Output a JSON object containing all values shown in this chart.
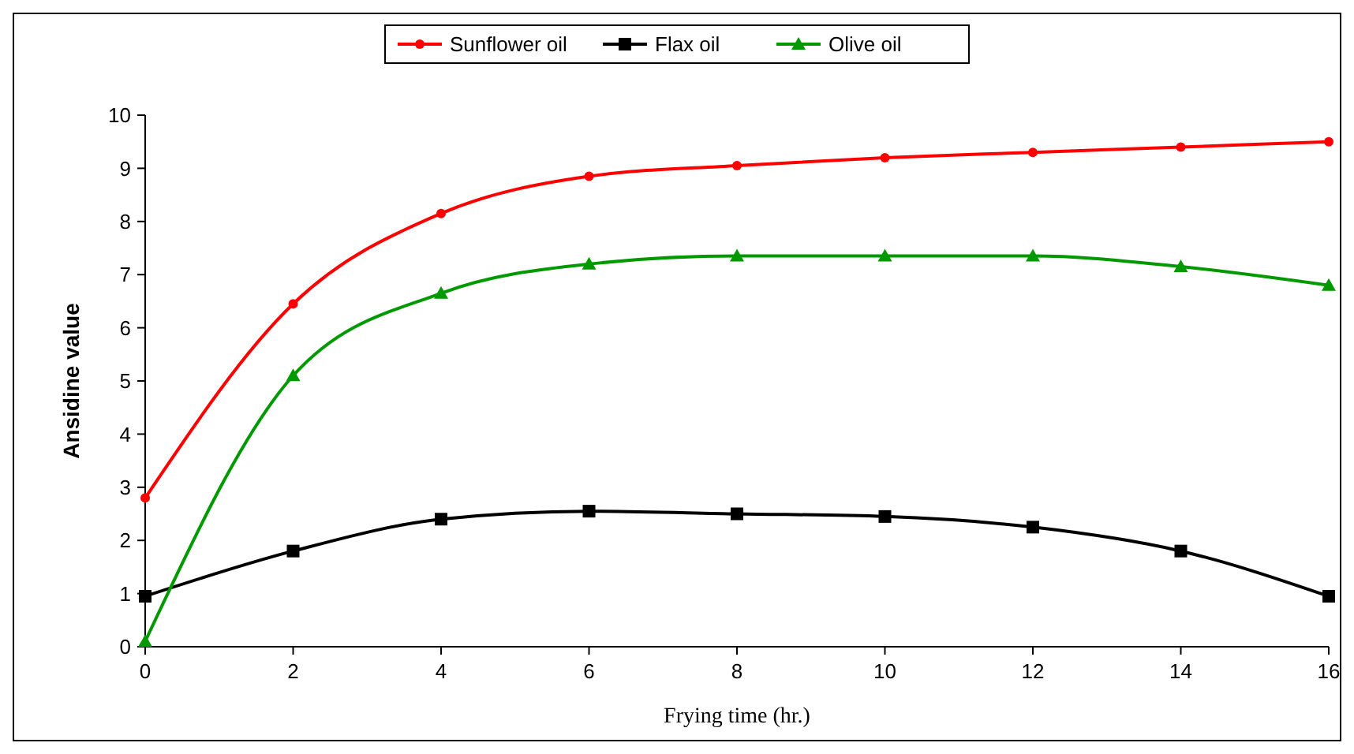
{
  "chart_data": {
    "type": "line",
    "xlabel": "Frying time (hr.)",
    "ylabel": "Ansidine value",
    "x": [
      0,
      2,
      4,
      6,
      8,
      10,
      12,
      14,
      16
    ],
    "xlim": [
      0,
      16
    ],
    "xticks": [
      0,
      2,
      4,
      6,
      8,
      10,
      12,
      14,
      16
    ],
    "ylim": [
      0,
      10
    ],
    "yticks": [
      0,
      1,
      2,
      3,
      4,
      5,
      6,
      7,
      8,
      9,
      10
    ],
    "grid": false,
    "legend": "top",
    "line_style": "solid",
    "series": [
      {
        "name": "Sunflower oil",
        "color": "#ff0000",
        "marker": "circle",
        "values": [
          2.8,
          6.45,
          8.15,
          8.85,
          9.05,
          9.2,
          9.3,
          9.4,
          9.5
        ]
      },
      {
        "name": "Flax oil",
        "color": "#000000",
        "marker": "square",
        "values": [
          0.95,
          1.8,
          2.4,
          2.55,
          2.5,
          2.45,
          2.25,
          1.8,
          0.95
        ]
      },
      {
        "name": "Olive oil",
        "color": "#009900",
        "marker": "triangle",
        "values": [
          0.1,
          5.1,
          6.65,
          7.2,
          7.35,
          7.35,
          7.35,
          7.15,
          6.8
        ]
      }
    ]
  }
}
